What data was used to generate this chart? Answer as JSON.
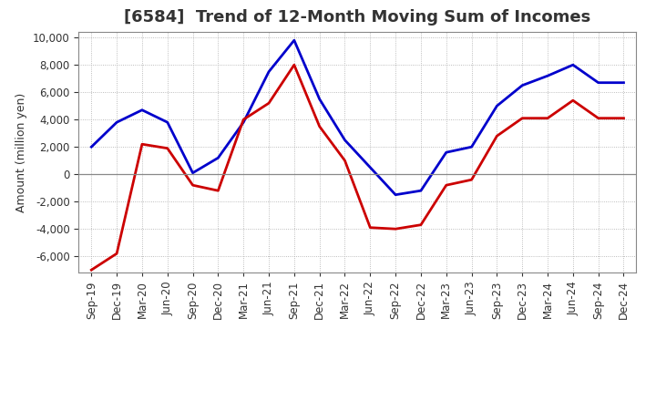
{
  "title": "[6584]  Trend of 12-Month Moving Sum of Incomes",
  "ylabel": "Amount (million yen)",
  "x_labels": [
    "Sep-19",
    "Dec-19",
    "Mar-20",
    "Jun-20",
    "Sep-20",
    "Dec-20",
    "Mar-21",
    "Jun-21",
    "Sep-21",
    "Dec-21",
    "Mar-22",
    "Jun-22",
    "Sep-22",
    "Dec-22",
    "Mar-23",
    "Jun-23",
    "Sep-23",
    "Dec-23",
    "Mar-24",
    "Jun-24",
    "Sep-24",
    "Dec-24"
  ],
  "ordinary_income": [
    2000,
    3800,
    4700,
    3800,
    100,
    1200,
    3800,
    7500,
    9800,
    5500,
    2500,
    500,
    -1500,
    -1200,
    1600,
    2000,
    5000,
    6500,
    7200,
    8000,
    6700,
    6700
  ],
  "net_income": [
    -7000,
    -5800,
    2200,
    1900,
    -800,
    -1200,
    4000,
    5200,
    8000,
    3500,
    1000,
    -3900,
    -4000,
    -3700,
    -800,
    -400,
    2800,
    4100,
    4100,
    5400,
    4100,
    4100
  ],
  "ordinary_color": "#0000cc",
  "net_color": "#cc0000",
  "ylim": [
    -7200,
    10400
  ],
  "yticks": [
    -6000,
    -4000,
    -2000,
    0,
    2000,
    4000,
    6000,
    8000,
    10000
  ],
  "bg_color": "#ffffff",
  "plot_bg_color": "#ffffff",
  "grid_color": "#aaaaaa",
  "linewidth": 2.0,
  "title_fontsize": 13,
  "label_fontsize": 9,
  "tick_fontsize": 8.5,
  "title_color": "#333333"
}
